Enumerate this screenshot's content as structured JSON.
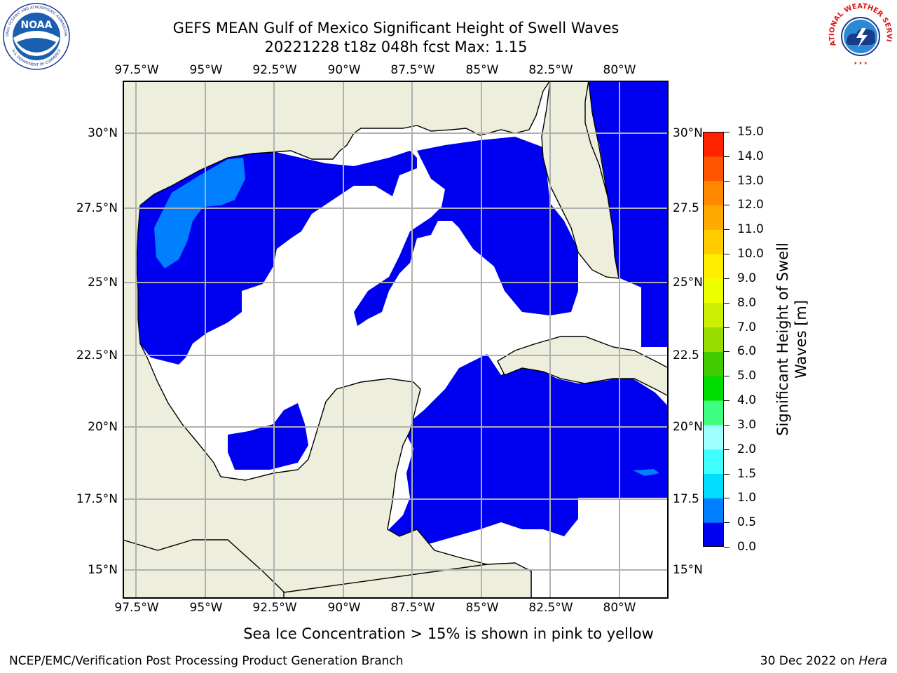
{
  "title": {
    "line1": "GEFS MEAN Gulf of Mexico Significant Height of Swell Waves",
    "line2": "20221228 t18z 048h fcst   Max: 1.15"
  },
  "map": {
    "region": "Gulf of Mexico",
    "lon_ticks": [
      "97.5°W",
      "95°W",
      "92.5°W",
      "90°W",
      "87.5°W",
      "85°W",
      "82.5°W",
      "80°W"
    ],
    "lat_ticks_left": [
      "30°N",
      "27.5°N",
      "25°N",
      "22.5°N",
      "20°N",
      "17.5°N",
      "15°N"
    ],
    "lat_ticks_right": [
      "30°N",
      "27.5",
      "25°N",
      "22.5",
      "20°N",
      "17.5",
      "15°N"
    ],
    "colors": {
      "land": "#eeeedd",
      "grid": "#b0b0b0",
      "coast": "#000000",
      "below_threshold": "#ffffff"
    }
  },
  "colorbar": {
    "title_lines": [
      "Significant Height of Swell",
      "Waves [m]"
    ],
    "levels": [
      "0.0",
      "0.5",
      "1.0",
      "1.5",
      "2.0",
      "3.0",
      "4.0",
      "5.0",
      "6.0",
      "7.0",
      "8.0",
      "9.0",
      "10.0",
      "11.0",
      "12.0",
      "13.0",
      "14.0",
      "15.0"
    ],
    "colors": [
      "#0000f0",
      "#0080ff",
      "#00ddff",
      "#40ffff",
      "#a0ffff",
      "#40ff80",
      "#00dd00",
      "#40cc00",
      "#99dd00",
      "#ccee00",
      "#eeff00",
      "#ffee00",
      "#ffcc00",
      "#ffaa00",
      "#ff8800",
      "#ff5500",
      "#ff2200"
    ]
  },
  "note": "Sea Ice Concentration > 15% is shown in pink to yellow",
  "footer": {
    "left": "NCEP/EMC/Verification Post Processing Product Generation Branch",
    "right_date": "30 Dec 2022 on ",
    "right_machine": "Hera"
  },
  "logos": {
    "noaa_text": "NOAA",
    "noaa_ring": "NATIONAL OCEANIC AND ATMOSPHERIC ADMINISTRATION",
    "noaa_ring_bottom": "U.S. DEPARTMENT OF COMMERCE",
    "nws_ring": "NATIONAL WEATHER SERVICE"
  }
}
